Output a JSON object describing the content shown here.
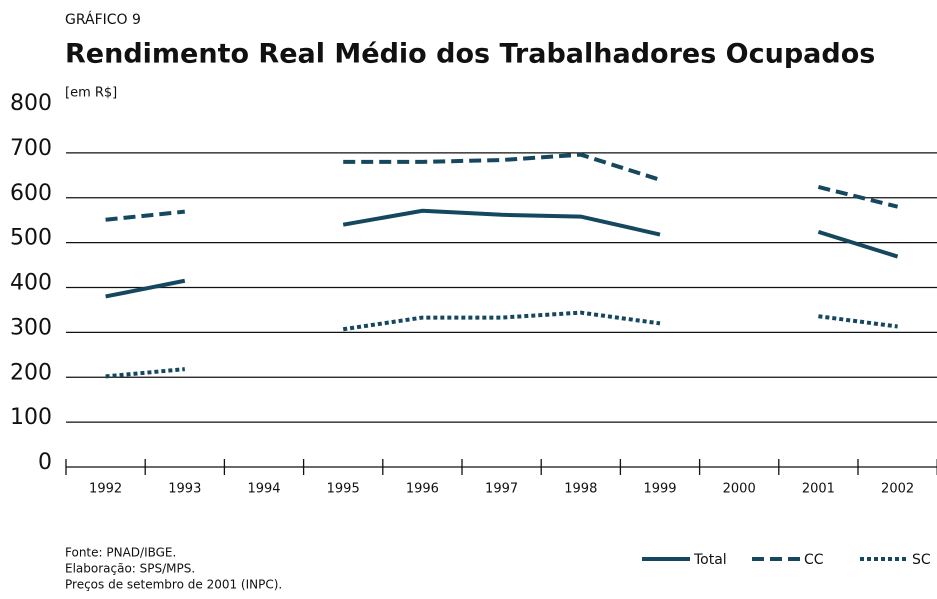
{
  "chart_data": {
    "type": "line",
    "label": "GRÁFICO 9",
    "title": "Rendimento Real Médio dos Trabalhadores Ocupados",
    "y_label": "[em R$]",
    "categories": [
      "1992",
      "1993",
      "1994",
      "1995",
      "1996",
      "1997",
      "1998",
      "1999",
      "2000",
      "2001",
      "2002"
    ],
    "series": [
      {
        "name": "Total",
        "color": "#15475f",
        "style": "solid",
        "values": [
          380,
          415,
          null,
          540,
          571,
          562,
          558,
          518,
          null,
          524,
          469
        ]
      },
      {
        "name": "CC",
        "color": "#15475f",
        "style": "dashed",
        "values": [
          551,
          569,
          null,
          680,
          680,
          684,
          696,
          640,
          null,
          624,
          580
        ]
      },
      {
        "name": "SC",
        "color": "#15475f",
        "style": "dotted",
        "values": [
          202,
          218,
          null,
          307,
          333,
          333,
          344,
          320,
          null,
          336,
          313
        ]
      }
    ],
    "ylim": [
      0,
      800
    ],
    "yticks": [
      0,
      100,
      200,
      300,
      400,
      500,
      600,
      700,
      800
    ],
    "grid": true,
    "notes": [
      "Fonte: PNAD/IBGE.",
      "Elaboração: SPS/MPS.",
      "Preços de setembro de 2001 (INPC)."
    ]
  }
}
